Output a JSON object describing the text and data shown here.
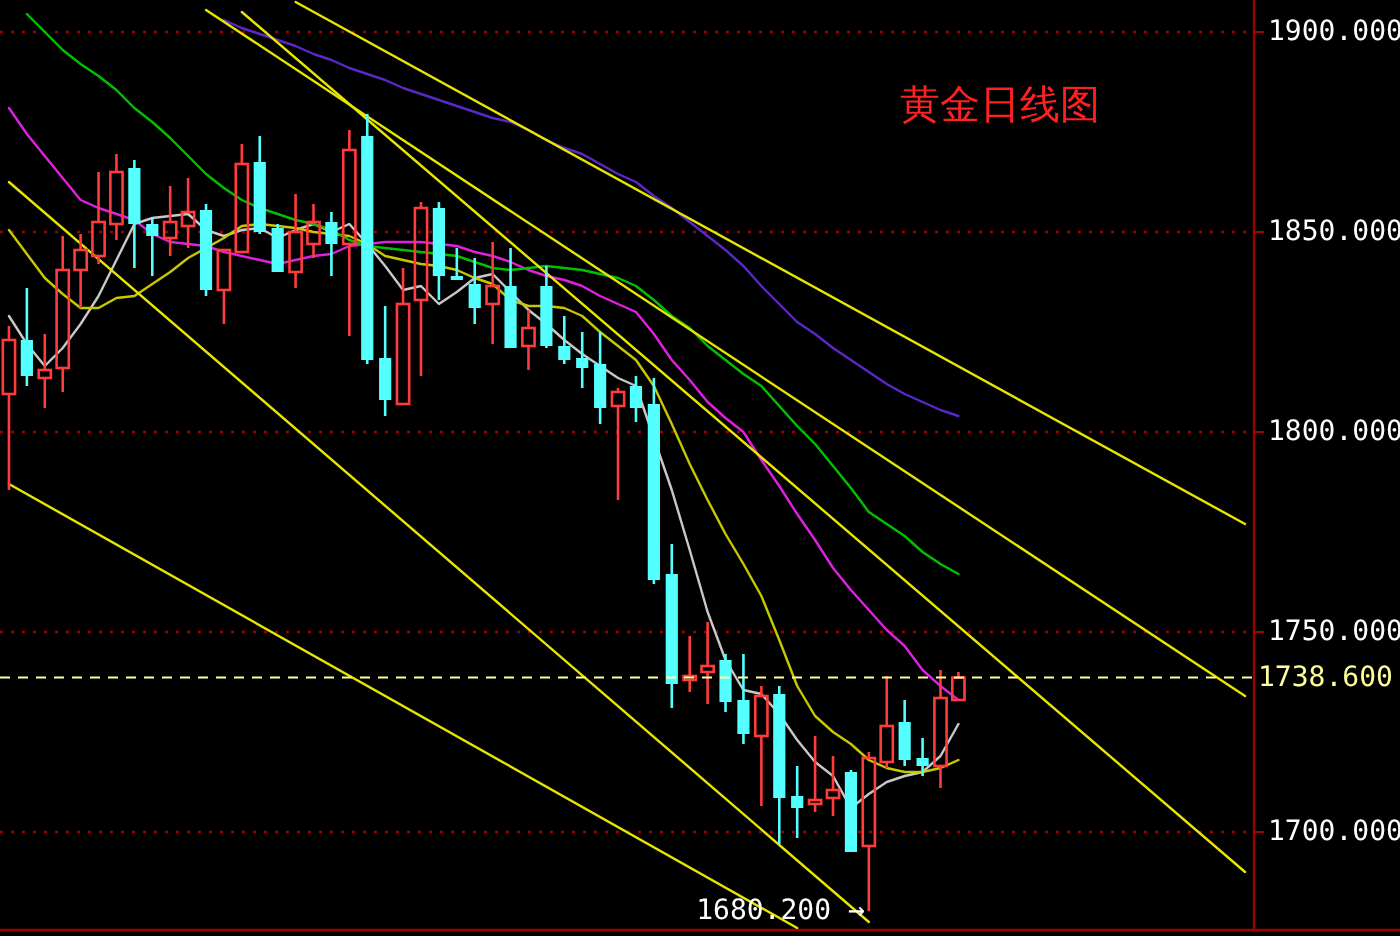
{
  "chart_data": {
    "type": "candlestick",
    "title": "黄金日线图",
    "categories": [
      null,
      null,
      null,
      null,
      null,
      null,
      null,
      null,
      null,
      null,
      null,
      null,
      null,
      null,
      null,
      null,
      null,
      null,
      null,
      null,
      null,
      null,
      null,
      null,
      null,
      null,
      null,
      null,
      null,
      null,
      null,
      null,
      null,
      null,
      null,
      null,
      null,
      null,
      null,
      null,
      null,
      null,
      null,
      null,
      null,
      null,
      null,
      null,
      null,
      null,
      null,
      null,
      null,
      null,
      null,
      null,
      null,
      null,
      null,
      null,
      null,
      null,
      null,
      null,
      null,
      null,
      null,
      null,
      null,
      null
    ],
    "ohlc": [
      [
        1809.5,
        1826.5,
        1785.5,
        1823
      ],
      [
        1823,
        1836,
        1811.5,
        1814
      ],
      [
        1813.5,
        1824.5,
        1806,
        1815.5
      ],
      [
        1816,
        1849,
        1810,
        1840.5
      ],
      [
        1840.5,
        1849.5,
        1831,
        1845.5
      ],
      [
        1844,
        1865,
        1842,
        1852.5
      ],
      [
        1852,
        1869.5,
        1848,
        1865
      ],
      [
        1866,
        1868,
        1841,
        1852
      ],
      [
        1852,
        1853.5,
        1839,
        1849
      ],
      [
        1848.5,
        1861.5,
        1844,
        1852.5
      ],
      [
        1851.5,
        1863.5,
        1846,
        1855
      ],
      [
        1855.5,
        1857,
        1834,
        1835.5
      ],
      [
        1835.5,
        1845.5,
        1827,
        1845.5
      ],
      [
        1845,
        1872,
        1845,
        1867
      ],
      [
        1867.5,
        1874,
        1849.5,
        1850
      ],
      [
        1851,
        1852,
        1840,
        1840
      ],
      [
        1840,
        1859.5,
        1836,
        1850
      ],
      [
        1847,
        1857,
        1843.5,
        1852.5
      ],
      [
        1852.5,
        1855,
        1839,
        1847
      ],
      [
        1847,
        1875.5,
        1824,
        1870.5
      ],
      [
        1874,
        1879.5,
        1817,
        1818
      ],
      [
        1818.5,
        1831.5,
        1804,
        1808
      ],
      [
        1807,
        1841,
        1807,
        1832
      ],
      [
        1833,
        1857.5,
        1814,
        1856
      ],
      [
        1856,
        1857.5,
        1833,
        1839
      ],
      [
        1839,
        1846,
        1838,
        1838
      ],
      [
        1837,
        1843.5,
        1827,
        1831
      ],
      [
        1832,
        1847.5,
        1822,
        1836.5
      ],
      [
        1836.5,
        1846,
        1821,
        1821
      ],
      [
        1821.5,
        1830.5,
        1815.5,
        1826
      ],
      [
        1836.5,
        1841.5,
        1821,
        1821.5
      ],
      [
        1821.5,
        1829,
        1817,
        1818
      ],
      [
        1818.5,
        1825,
        1811,
        1816
      ],
      [
        1817,
        1825,
        1802,
        1806
      ],
      [
        1806.5,
        1811,
        1783,
        1810
      ],
      [
        1811.5,
        1814,
        1802.5,
        1806
      ],
      [
        1807,
        1813.5,
        1762,
        1763
      ],
      [
        1764.5,
        1772,
        1731,
        1737
      ],
      [
        1738,
        1749,
        1735,
        1739
      ],
      [
        1740,
        1752.5,
        1732,
        1741.5
      ],
      [
        1743,
        1744.5,
        1730,
        1732.5
      ],
      [
        1733,
        1744.5,
        1722,
        1724.5
      ],
      [
        1724,
        1736.5,
        1706.5,
        1734
      ],
      [
        1734.5,
        1736.5,
        1697,
        1708.5
      ],
      [
        1709,
        1716.5,
        1698.5,
        1706
      ],
      [
        1707,
        1724,
        1705,
        1708
      ],
      [
        1708.5,
        1719,
        1704,
        1710.5
      ],
      [
        1715,
        1715.5,
        1695,
        1695
      ],
      [
        1696.5,
        1720,
        1680.2,
        1718.5
      ],
      [
        1717.5,
        1739,
        1716,
        1726.5
      ],
      [
        1727.5,
        1733,
        1716.5,
        1718
      ],
      [
        1718.5,
        1723.5,
        1714,
        1716.5
      ],
      [
        1716.5,
        1740.5,
        1711,
        1733.5
      ],
      [
        1733,
        1740,
        1733,
        1738.6
      ],
      null,
      null,
      null,
      null,
      null,
      null,
      null,
      null,
      null,
      null,
      null,
      null,
      null,
      null,
      null,
      null
    ],
    "series": [
      {
        "type": "line",
        "color": "#c8c8c8",
        "values": [
          1829,
          1822,
          1816.5,
          1821,
          1827,
          1834,
          1843,
          1852,
          1853.5,
          1854,
          1854.5,
          1850.5,
          1849,
          1850.5,
          1851,
          1848.5,
          1850.5,
          1852,
          1850,
          1852,
          1847,
          1841.5,
          1835.5,
          1836.5,
          1832,
          1835,
          1838.5,
          1839.5,
          1835,
          1830.5,
          1827,
          1823,
          1819.5,
          1816.5,
          1813.5,
          1811.5,
          null,
          1785.5,
          1770.5,
          1755,
          1743,
          1735.5,
          1734.5,
          1729.5,
          1723,
          1717.5,
          1714,
          1706,
          1709.5,
          1712.5,
          1714,
          1715,
          1719,
          1727,
          null,
          null,
          null,
          null,
          null,
          null,
          null,
          null,
          null,
          null,
          null,
          null,
          null,
          null,
          null,
          null
        ]
      },
      {
        "type": "line",
        "color": "#c8c800",
        "values": [
          1850.5,
          1844.5,
          1838.5,
          1834.5,
          1831,
          1831,
          1833.5,
          1834,
          1837,
          1840,
          1843.5,
          1846,
          1848.5,
          1851.5,
          1852,
          1851.5,
          1851,
          1850,
          1849.5,
          1849,
          1847,
          1844,
          1843,
          1842,
          1841.5,
          1840.5,
          1838.5,
          1837,
          1833,
          1831.5,
          1831.5,
          1831,
          1829,
          1825,
          1821.5,
          1818,
          1811.5,
          1802,
          1792,
          1783,
          1774.5,
          1767,
          1759,
          1748,
          1736.5,
          1729,
          1725,
          1722,
          1718,
          1716,
          1715,
          1715,
          1716,
          1718,
          null,
          null,
          null,
          null,
          null,
          null,
          null,
          null,
          null,
          null,
          null,
          null,
          null,
          null,
          null,
          null
        ]
      },
      {
        "type": "line",
        "color": "#e020e0",
        "values": [
          1881,
          1874.5,
          1869,
          1863.5,
          1858,
          1856,
          1854.5,
          1853,
          1849.5,
          1847.5,
          1847,
          1846.5,
          1845,
          1844,
          1843,
          1842,
          1843,
          1844,
          1844.5,
          1846.5,
          1847,
          1847.5,
          1847.5,
          1847.5,
          1847,
          1846.5,
          1845,
          1844,
          1842.5,
          1840.5,
          1839,
          1838,
          1836.5,
          1834,
          1832,
          1830,
          1824.5,
          1818,
          1813,
          1807.5,
          1803.5,
          1800,
          1793,
          1786.5,
          1779.5,
          1773,
          1766,
          1760.5,
          1755.5,
          1750.5,
          1746.5,
          1740.5,
          1736.5,
          1733,
          null,
          null,
          null,
          null,
          null,
          null,
          null,
          null,
          null,
          null,
          null,
          null,
          null,
          null,
          null,
          null
        ]
      },
      {
        "type": "line",
        "color": "#00c000",
        "values": [
          null,
          1904.5,
          1900,
          1895.5,
          1892,
          1889,
          1885.5,
          1881,
          1877.5,
          1873.5,
          1869,
          1864.5,
          1861,
          1858,
          1856,
          1854.5,
          1853,
          1852,
          1850.5,
          1848,
          1846.5,
          1846,
          1845.5,
          1845,
          1844.5,
          1844,
          1842.5,
          1841,
          1840.5,
          1841,
          1841.5,
          1841,
          1840.5,
          1839.5,
          1838.5,
          1836.5,
          1833,
          1829,
          1826,
          1821.5,
          1818,
          1814.5,
          1811.5,
          1806.5,
          1801.5,
          1797,
          1791.5,
          1786,
          1780,
          1777,
          1774,
          1770,
          1767,
          1764.5,
          null,
          null,
          null,
          null,
          null,
          null,
          null,
          null,
          null,
          null,
          null,
          null,
          null,
          null,
          null,
          null
        ]
      },
      {
        "type": "line",
        "color": "#5a28c8",
        "values": [
          null,
          null,
          null,
          null,
          null,
          null,
          null,
          null,
          null,
          null,
          null,
          null,
          1903,
          1901,
          1899.5,
          1898,
          1896.5,
          1894.5,
          1893,
          1891,
          1889.5,
          1888,
          1886,
          1884.5,
          1883,
          1881.5,
          1880,
          1878.5,
          1877.5,
          1875.5,
          1873,
          1871,
          1869.5,
          1867,
          1864.5,
          1862.5,
          1859,
          1856,
          1852.5,
          1849,
          1845.5,
          1841.5,
          1836.5,
          1832,
          1827.5,
          1824.5,
          1821,
          1818,
          1815,
          1812,
          1809.5,
          1807.5,
          1805.5,
          1804,
          null,
          null,
          null,
          null,
          null,
          null,
          null,
          null,
          null,
          null,
          null,
          null,
          null,
          null,
          null,
          null
        ]
      },
      {
        "type": "line",
        "color": "#e6e600",
        "values": [
          1787,
          null,
          null,
          null,
          null,
          null,
          null,
          null,
          null,
          null,
          null,
          null,
          null,
          null,
          null,
          null,
          null,
          null,
          null,
          null,
          null,
          null,
          null,
          null,
          null,
          null,
          null,
          null,
          null,
          null,
          null,
          null,
          null,
          null,
          null,
          null,
          null,
          null,
          null,
          null,
          null,
          null,
          null,
          null,
          1676,
          null,
          null,
          null,
          null,
          null,
          null,
          null,
          null,
          null,
          null,
          null,
          null,
          null,
          null,
          null,
          null,
          null,
          null,
          null,
          null,
          null,
          null,
          null,
          null,
          null
        ]
      },
      {
        "type": "line",
        "color": "#e6e600",
        "values": [
          1862.5,
          null,
          null,
          null,
          null,
          null,
          null,
          null,
          null,
          null,
          null,
          null,
          null,
          null,
          null,
          null,
          null,
          null,
          null,
          null,
          null,
          null,
          null,
          null,
          null,
          null,
          null,
          null,
          null,
          null,
          null,
          null,
          null,
          null,
          null,
          null,
          null,
          null,
          null,
          null,
          null,
          null,
          null,
          null,
          null,
          null,
          null,
          null,
          1677.5,
          null,
          null,
          null,
          null,
          null,
          null,
          null,
          null,
          null,
          null,
          null,
          null,
          null,
          null,
          null,
          null,
          null,
          null,
          null,
          null,
          null
        ]
      },
      {
        "type": "line",
        "color": "#e6e600",
        "values": [
          null,
          null,
          null,
          null,
          null,
          null,
          null,
          null,
          null,
          null,
          null,
          null,
          null,
          null,
          null,
          null,
          1907.5,
          null,
          null,
          null,
          null,
          null,
          null,
          null,
          null,
          null,
          null,
          null,
          null,
          null,
          null,
          null,
          null,
          null,
          null,
          null,
          null,
          null,
          null,
          null,
          null,
          null,
          null,
          null,
          null,
          null,
          null,
          null,
          null,
          null,
          null,
          null,
          null,
          null,
          null,
          null,
          null,
          null,
          null,
          null,
          null,
          null,
          null,
          null,
          null,
          null,
          null,
          null,
          null,
          1777
        ]
      },
      {
        "type": "line",
        "color": "#e6e600",
        "values": [
          null,
          null,
          null,
          null,
          null,
          null,
          null,
          null,
          null,
          null,
          null,
          1905.5,
          null,
          null,
          null,
          null,
          null,
          null,
          null,
          null,
          null,
          null,
          null,
          null,
          null,
          null,
          null,
          null,
          null,
          null,
          null,
          null,
          null,
          null,
          null,
          null,
          null,
          null,
          null,
          null,
          null,
          null,
          null,
          null,
          null,
          null,
          null,
          null,
          null,
          null,
          null,
          null,
          null,
          null,
          null,
          null,
          null,
          null,
          null,
          null,
          null,
          null,
          null,
          null,
          null,
          null,
          null,
          null,
          null,
          1734
        ]
      },
      {
        "type": "line",
        "color": "#e6e600",
        "values": [
          null,
          null,
          null,
          null,
          null,
          null,
          null,
          null,
          null,
          null,
          null,
          null,
          null,
          1905,
          null,
          null,
          null,
          null,
          null,
          null,
          null,
          null,
          null,
          null,
          null,
          null,
          null,
          null,
          null,
          null,
          null,
          null,
          null,
          null,
          null,
          null,
          null,
          null,
          null,
          null,
          null,
          null,
          null,
          null,
          null,
          null,
          null,
          null,
          null,
          null,
          null,
          null,
          null,
          null,
          null,
          null,
          null,
          null,
          null,
          null,
          null,
          null,
          null,
          null,
          null,
          null,
          null,
          null,
          null,
          1690
        ]
      }
    ],
    "ylim": [
      1675.5,
      1908
    ],
    "yticks": [
      {
        "value": 1700,
        "label": "1700.000"
      },
      {
        "value": 1750,
        "label": "1750.000"
      },
      {
        "value": 1800,
        "label": "1800.000"
      },
      {
        "value": 1850,
        "label": "1850.000"
      },
      {
        "value": 1900,
        "label": "1900.000"
      }
    ],
    "grid": "y",
    "ref_lines": [
      {
        "axis": "y",
        "value": 1738.6,
        "label": "1738.600",
        "color": "#ffff99",
        "line_style": "dashed"
      }
    ],
    "annotations": [
      "1680.200 →"
    ]
  }
}
